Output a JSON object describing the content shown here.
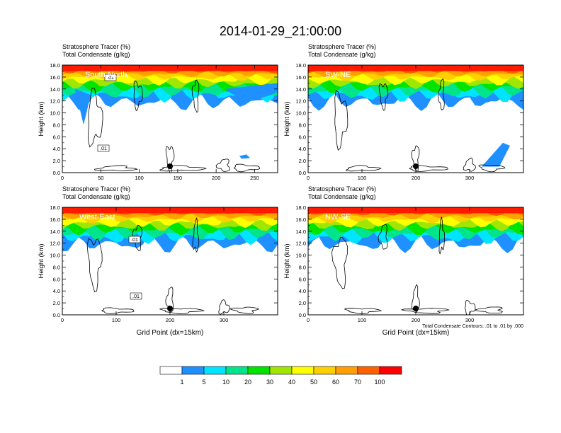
{
  "page_title": "2014-01-29_21:00:00",
  "chart_data": [
    {
      "type": "heatmap",
      "panel_label": "South-North",
      "title_left_1": "Stratosphere Tracer   (%)",
      "title_left_2": "Total Condensate   (g/kg)",
      "ylabel": "Height (km)",
      "xlabel": "",
      "ylim": [
        0,
        18
      ],
      "yticks": [
        "0.0",
        "2.0",
        "4.0",
        "6.0",
        "8.0",
        "10.0",
        "12.0",
        "14.0",
        "16.0",
        "18.0"
      ],
      "xlim": [
        0,
        280
      ],
      "xticks": [
        "0",
        "50",
        "100",
        "150",
        "200",
        "250"
      ],
      "contour_labels": [
        ".01",
        ".01"
      ],
      "marker_x": 140
    },
    {
      "type": "heatmap",
      "panel_label": "SW-NE",
      "title_left_1": "Stratosphere Tracer   (%)",
      "title_left_2": "Total Condensate   (g/kg)",
      "ylabel": "Height (km)",
      "xlabel": "",
      "ylim": [
        0,
        18
      ],
      "yticks": [
        "0.0",
        "2.0",
        "4.0",
        "6.0",
        "8.0",
        "10.0",
        "12.0",
        "14.0",
        "16.0",
        "18.0"
      ],
      "xlim": [
        0,
        400
      ],
      "xticks": [
        "0",
        "100",
        "200",
        "300"
      ],
      "contour_labels": [],
      "marker_x": 200
    },
    {
      "type": "heatmap",
      "panel_label": "West-East",
      "title_left_1": "Stratosphere Tracer   (%)",
      "title_left_2": "Total Condensate   (g/kg)",
      "ylabel": "Height (km)",
      "xlabel": "Grid Point (dx=15km)",
      "ylim": [
        0,
        18
      ],
      "yticks": [
        "0.0",
        "2.0",
        "4.0",
        "6.0",
        "8.0",
        "10.0",
        "12.0",
        "14.0",
        "16.0",
        "18.0"
      ],
      "xlim": [
        0,
        400
      ],
      "xticks": [
        "0",
        "100",
        "200",
        "300"
      ],
      "contour_labels": [
        ".01",
        ".01"
      ],
      "marker_x": 200
    },
    {
      "type": "heatmap",
      "panel_label": "NW-SE",
      "title_left_1": "Stratosphere Tracer   (%)",
      "title_left_2": "Total Condensate   (g/kg)",
      "ylabel": "Height (km)",
      "xlabel": "Grid Point (dx=15km)",
      "ylim": [
        0,
        18
      ],
      "yticks": [
        "0.0",
        "2.0",
        "4.0",
        "6.0",
        "8.0",
        "10.0",
        "12.0",
        "14.0",
        "16.0",
        "18.0"
      ],
      "xlim": [
        0,
        400
      ],
      "xticks": [
        "0",
        "100",
        "200",
        "300"
      ],
      "contour_labels": [],
      "marker_x": 200,
      "footnote": "Total Condensate Contours: .01 to .01 by .000"
    }
  ],
  "colorbar": {
    "colors": [
      "#ffffff",
      "#1e90ff",
      "#00e5ff",
      "#00e58c",
      "#00e500",
      "#a0e600",
      "#ffff00",
      "#ffd000",
      "#ffa000",
      "#ff6000",
      "#ff0000"
    ],
    "labels": [
      "1",
      "5",
      "10",
      "20",
      "30",
      "40",
      "50",
      "60",
      "70",
      "100"
    ]
  },
  "colors": {
    "red": "#ff1a00",
    "orange_red": "#ff6000",
    "orange": "#ffa000",
    "gold": "#ffd000",
    "yellow": "#ffff00",
    "yellow_green": "#a0e600",
    "green": "#00e500",
    "sea_green": "#00e58c",
    "cyan": "#00e5ff",
    "blue": "#1e90ff"
  }
}
